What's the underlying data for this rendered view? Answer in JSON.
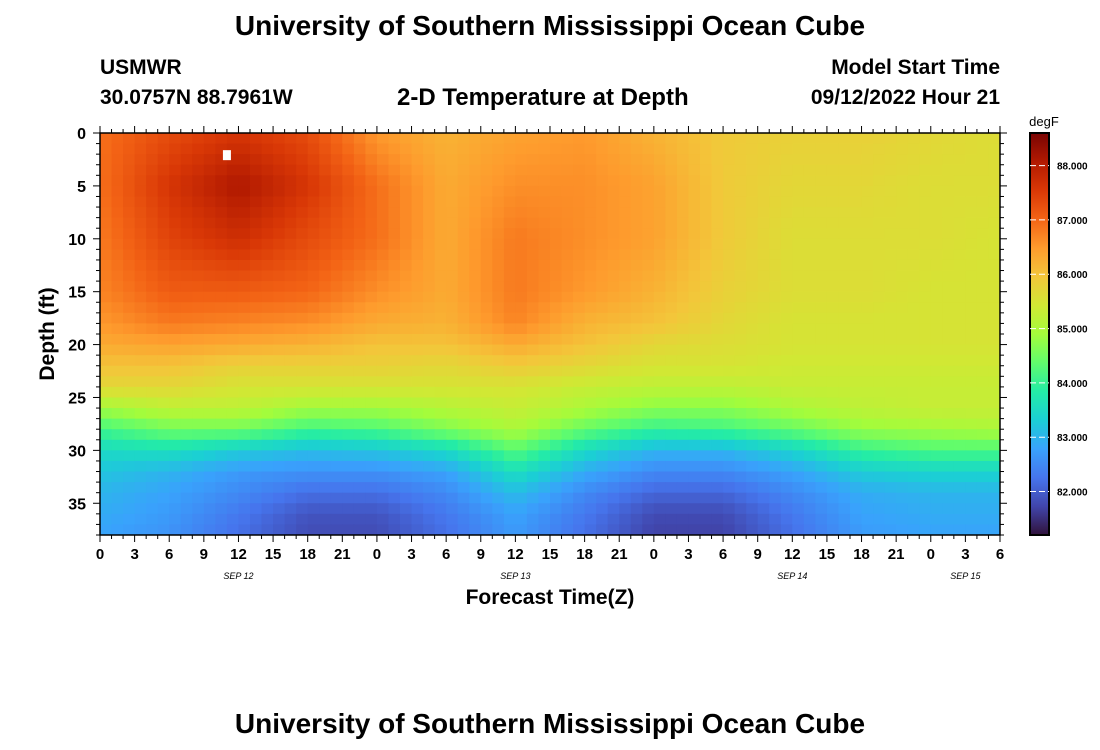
{
  "header": {
    "title": "University of Southern Mississippi Ocean Cube",
    "station_id": "USMWR",
    "coords": "30.0757N  88.7961W",
    "plot_title": "2-D Temperature at Depth",
    "model_start_label": "Model Start Time",
    "model_start_value": "09/12/2022 Hour 21"
  },
  "footer": {
    "title": "University of Southern Mississippi Ocean Cube"
  },
  "chart_data": {
    "type": "heatmap",
    "xlabel": "Forecast Time(Z)",
    "ylabel": "Depth (ft)",
    "x_range_hours": [
      0,
      78
    ],
    "x_tick_labels": [
      "0",
      "3",
      "6",
      "9",
      "12",
      "15",
      "18",
      "21",
      "0",
      "3",
      "6",
      "9",
      "12",
      "15",
      "18",
      "21",
      "0",
      "3",
      "6",
      "9",
      "12",
      "15",
      "18",
      "21",
      "0",
      "3",
      "6"
    ],
    "date_labels": [
      {
        "label": "SEP 12",
        "hour": 12
      },
      {
        "label": "SEP 13",
        "hour": 36
      },
      {
        "label": "SEP 14",
        "hour": 60
      },
      {
        "label": "SEP 15",
        "hour": 75
      }
    ],
    "y_range_ft": [
      0,
      38
    ],
    "y_ticks": [
      0,
      5,
      10,
      15,
      20,
      25,
      30,
      35
    ],
    "y_reversed": true,
    "colorbar": {
      "unit": "degF",
      "range": [
        81.2,
        88.6
      ],
      "ticks": [
        "82.000",
        "83.000",
        "84.000",
        "85.000",
        "86.000",
        "87.000",
        "88.000"
      ],
      "colormap": [
        "#30123b",
        "#4145ab",
        "#4675ed",
        "#39a2fc",
        "#1bcfd4",
        "#24eca6",
        "#61fc6c",
        "#a4fc3b",
        "#d1e834",
        "#f3c63a",
        "#fe9b2d",
        "#f36315",
        "#d93806",
        "#b11901",
        "#7a0403"
      ]
    },
    "marker": {
      "hour": 11,
      "depth_ft": 2
    },
    "time_hours": [
      0,
      6,
      12,
      18,
      24,
      30,
      36,
      42,
      48,
      54,
      60,
      66,
      72,
      78
    ],
    "depths_ft": [
      0,
      5,
      10,
      15,
      18,
      20,
      22,
      24,
      26,
      28,
      30,
      32,
      34,
      36,
      38
    ],
    "temperature_degF": [
      [
        86.9,
        87.3,
        87.6,
        87.3,
        86.5,
        86.2,
        86.4,
        86.5,
        86.2,
        85.9,
        85.8,
        85.8,
        85.7,
        85.6
      ],
      [
        86.9,
        87.6,
        88.1,
        87.6,
        86.9,
        86.3,
        86.6,
        86.6,
        86.4,
        85.9,
        85.7,
        85.7,
        85.6,
        85.6
      ],
      [
        86.8,
        87.4,
        87.7,
        87.3,
        86.9,
        86.3,
        86.8,
        86.6,
        86.4,
        85.9,
        85.6,
        85.6,
        85.6,
        85.5
      ],
      [
        86.7,
        87.1,
        87.1,
        87.0,
        86.6,
        86.3,
        86.8,
        86.5,
        86.2,
        85.8,
        85.6,
        85.6,
        85.5,
        85.5
      ],
      [
        86.5,
        86.8,
        86.7,
        86.6,
        86.3,
        86.2,
        86.7,
        86.2,
        86.0,
        85.7,
        85.5,
        85.5,
        85.5,
        85.5
      ],
      [
        86.3,
        86.4,
        86.3,
        86.2,
        86.0,
        86.0,
        86.3,
        86.0,
        85.7,
        85.6,
        85.5,
        85.5,
        85.5,
        85.5
      ],
      [
        86.0,
        86.0,
        85.8,
        85.8,
        85.8,
        85.7,
        85.9,
        85.7,
        85.5,
        85.5,
        85.4,
        85.4,
        85.4,
        85.4
      ],
      [
        85.7,
        85.7,
        85.5,
        85.5,
        85.5,
        85.5,
        85.5,
        85.3,
        85.2,
        85.2,
        85.3,
        85.3,
        85.3,
        85.3
      ],
      [
        84.9,
        85.2,
        85.2,
        84.9,
        84.9,
        85.1,
        85.3,
        85.0,
        84.7,
        84.7,
        85.0,
        85.2,
        85.3,
        85.3
      ],
      [
        84.1,
        84.5,
        84.5,
        84.1,
        84.2,
        84.6,
        85.0,
        84.4,
        84.0,
        84.1,
        84.4,
        84.8,
        84.9,
        85.0
      ],
      [
        83.5,
        83.6,
        83.3,
        83.1,
        83.2,
        83.5,
        84.3,
        83.5,
        83.0,
        83.0,
        83.4,
        84.0,
        84.2,
        84.2
      ],
      [
        83.2,
        83.0,
        82.7,
        82.6,
        82.6,
        82.8,
        83.6,
        82.9,
        82.5,
        82.5,
        82.8,
        83.3,
        83.4,
        83.4
      ],
      [
        83.0,
        82.8,
        82.5,
        82.2,
        82.2,
        82.5,
        83.1,
        82.5,
        82.1,
        82.1,
        82.5,
        82.9,
        83.0,
        83.0
      ],
      [
        82.9,
        82.7,
        82.3,
        81.9,
        81.9,
        82.3,
        82.8,
        82.3,
        81.8,
        81.8,
        82.3,
        82.8,
        82.9,
        82.9
      ],
      [
        82.8,
        82.6,
        82.2,
        81.8,
        81.8,
        82.2,
        82.7,
        82.2,
        81.7,
        81.7,
        82.2,
        82.7,
        82.8,
        82.8
      ]
    ]
  }
}
